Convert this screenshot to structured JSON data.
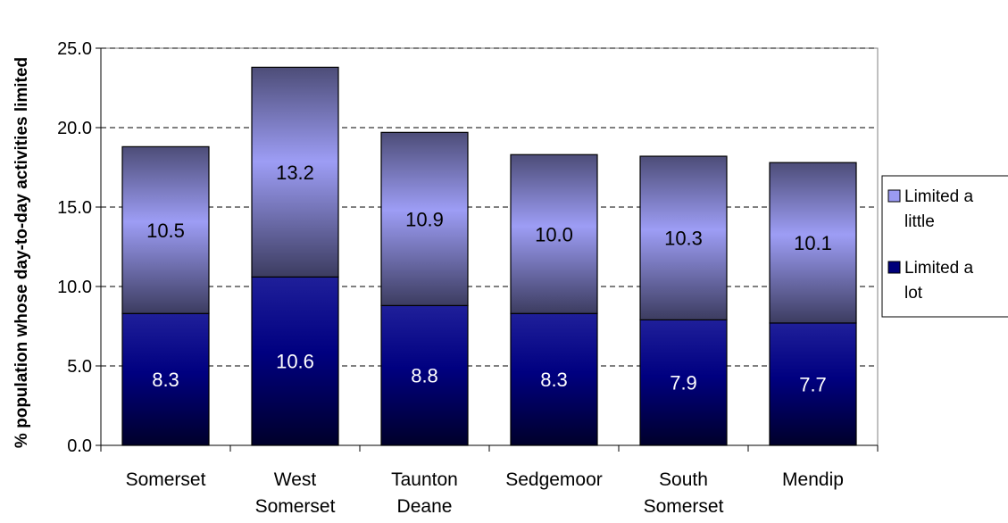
{
  "chart_data": {
    "type": "bar",
    "stacked": true,
    "categories": [
      [
        "Somerset"
      ],
      [
        "West",
        "Somerset"
      ],
      [
        "Taunton",
        "Deane"
      ],
      [
        "Sedgemoor"
      ],
      [
        "South",
        "Somerset"
      ],
      [
        "Mendip"
      ]
    ],
    "series": [
      {
        "name": "Limited a lot",
        "legend_lines": [
          "Limited a",
          "lot"
        ],
        "values": [
          8.3,
          10.6,
          8.8,
          8.3,
          7.9,
          7.7
        ],
        "value_labels": [
          "8.3",
          "10.6",
          "8.8",
          "8.3",
          "7.9",
          "7.7"
        ],
        "color": "#000070"
      },
      {
        "name": "Limited a little",
        "legend_lines": [
          "Limited a",
          "little"
        ],
        "values": [
          10.5,
          13.2,
          10.9,
          10.0,
          10.3,
          10.1
        ],
        "value_labels": [
          "10.5",
          "13.2",
          "10.9",
          "10.0",
          "10.3",
          "10.1"
        ],
        "color": "#9a9af2"
      }
    ],
    "ylabel": "% population whose day-to-day activities limited",
    "xlabel": "",
    "ylim": [
      0,
      25
    ],
    "yticks": [
      0,
      5,
      10,
      15,
      20,
      25
    ],
    "ytick_labels": [
      "0.0",
      "5.0",
      "10.0",
      "15.0",
      "20.0",
      "25.0"
    ],
    "grid": "horizontal dashed",
    "legend_position": "right"
  }
}
